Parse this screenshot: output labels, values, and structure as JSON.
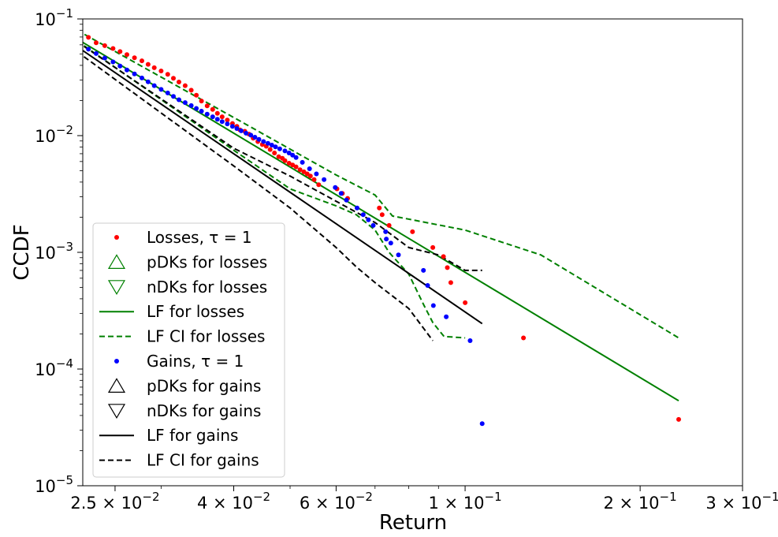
{
  "chart_data": {
    "type": "scatter",
    "xlabel": "Return",
    "ylabel": "CCDF",
    "xscale": "log",
    "yscale": "log",
    "xlim": [
      0.022,
      0.3
    ],
    "ylim": [
      1e-05,
      0.1
    ],
    "x_ticks": [
      {
        "value": 0.025,
        "mant": "2.5",
        "exp": "−2"
      },
      {
        "value": 0.04,
        "mant": "4",
        "exp": "−2"
      },
      {
        "value": 0.06,
        "mant": "6",
        "exp": "−2"
      },
      {
        "value": 0.1,
        "mant": "1",
        "exp": "−1"
      },
      {
        "value": 0.2,
        "mant": "2",
        "exp": "−1"
      },
      {
        "value": 0.3,
        "mant": "3",
        "exp": "−1"
      }
    ],
    "y_ticks": [
      {
        "value": 0.1,
        "base": "10",
        "exp": "−1"
      },
      {
        "value": 0.01,
        "base": "10",
        "exp": "−2"
      },
      {
        "value": 0.001,
        "base": "10",
        "exp": "−3"
      },
      {
        "value": 0.0001,
        "base": "10",
        "exp": "−4"
      },
      {
        "value": 1e-05,
        "base": "10",
        "exp": "−5"
      }
    ],
    "grid": false,
    "legend_position": "bottom-left",
    "legend": [
      {
        "label": "Losses, τ = 1",
        "marker": "dot",
        "color": "#ff0000"
      },
      {
        "label": "pDKs for losses",
        "marker": "triangle-up",
        "color": "#008000"
      },
      {
        "label": "nDKs for losses",
        "marker": "triangle-down",
        "color": "#008000"
      },
      {
        "label": "LF for losses",
        "marker": "solid-line",
        "color": "#008000"
      },
      {
        "label": "LF CI for losses",
        "marker": "dashed-line",
        "color": "#008000"
      },
      {
        "label": "Gains, τ = 1",
        "marker": "dot",
        "color": "#0000ff"
      },
      {
        "label": "pDKs for gains",
        "marker": "triangle-up",
        "color": "#000000"
      },
      {
        "label": "nDKs for gains",
        "marker": "triangle-down",
        "color": "#000000"
      },
      {
        "label": "LF for gains",
        "marker": "solid-line",
        "color": "#000000"
      },
      {
        "label": "LF CI for gains",
        "marker": "dashed-line",
        "color": "#000000"
      }
    ],
    "series": [
      {
        "name": "Losses, τ = 1",
        "kind": "scatter",
        "color": "#ff0000",
        "x": [
          0.0225,
          0.0232,
          0.024,
          0.0248,
          0.0255,
          0.0262,
          0.027,
          0.0278,
          0.0285,
          0.0292,
          0.03,
          0.0308,
          0.0315,
          0.0322,
          0.033,
          0.0338,
          0.0345,
          0.0352,
          0.036,
          0.0368,
          0.0375,
          0.0382,
          0.039,
          0.0398,
          0.0405,
          0.041,
          0.0418,
          0.0425,
          0.0432,
          0.044,
          0.0448,
          0.0455,
          0.0462,
          0.047,
          0.0478,
          0.0485,
          0.049,
          0.0498,
          0.0505,
          0.0512,
          0.052,
          0.0528,
          0.0535,
          0.0542,
          0.055,
          0.056,
          0.0602,
          0.0615,
          0.0628,
          0.0712,
          0.072,
          0.074,
          0.0812,
          0.088,
          0.0918,
          0.0932,
          0.0945,
          0.1,
          0.126,
          0.233
        ],
        "y": [
          0.0695,
          0.0625,
          0.059,
          0.0558,
          0.0525,
          0.0495,
          0.0465,
          0.0438,
          0.0408,
          0.0382,
          0.0358,
          0.0335,
          0.031,
          0.0288,
          0.0268,
          0.0245,
          0.0222,
          0.0198,
          0.018,
          0.0168,
          0.0155,
          0.0145,
          0.0136,
          0.0127,
          0.012,
          0.0112,
          0.0109,
          0.0103,
          0.0095,
          0.0089,
          0.0084,
          0.0081,
          0.0076,
          0.0071,
          0.0066,
          0.0064,
          0.0061,
          0.0058,
          0.0056,
          0.0054,
          0.0051,
          0.0049,
          0.0047,
          0.0045,
          0.0042,
          0.0038,
          0.0035,
          0.0032,
          0.0029,
          0.0024,
          0.0021,
          0.0017,
          0.0015,
          0.0011,
          0.00092,
          0.00074,
          0.00055,
          0.00037,
          0.000185,
          3.7e-05
        ]
      },
      {
        "name": "Gains, τ = 1",
        "kind": "scatter",
        "color": "#0000ff",
        "x": [
          0.0225,
          0.0232,
          0.024,
          0.0248,
          0.0255,
          0.0262,
          0.027,
          0.0278,
          0.0285,
          0.0292,
          0.03,
          0.0308,
          0.0315,
          0.0322,
          0.033,
          0.0338,
          0.0345,
          0.0352,
          0.036,
          0.0368,
          0.0375,
          0.0382,
          0.039,
          0.0398,
          0.0405,
          0.0412,
          0.042,
          0.0428,
          0.0435,
          0.0442,
          0.045,
          0.0458,
          0.0465,
          0.0472,
          0.048,
          0.049,
          0.0498,
          0.0505,
          0.0512,
          0.0525,
          0.054,
          0.0555,
          0.0572,
          0.0598,
          0.0612,
          0.0625,
          0.0652,
          0.0668,
          0.0682,
          0.0695,
          0.073,
          0.0732,
          0.0745,
          0.0768,
          0.0848,
          0.0862,
          0.0882,
          0.0928,
          0.102,
          0.107
        ],
        "y": [
          0.055,
          0.0505,
          0.0462,
          0.0428,
          0.0395,
          0.0365,
          0.0338,
          0.0312,
          0.0289,
          0.0268,
          0.0249,
          0.0232,
          0.0217,
          0.0203,
          0.0192,
          0.0181,
          0.0171,
          0.0162,
          0.0153,
          0.0145,
          0.0138,
          0.0132,
          0.0126,
          0.012,
          0.0115,
          0.011,
          0.0105,
          0.0101,
          0.0097,
          0.0093,
          0.0089,
          0.0086,
          0.0083,
          0.008,
          0.0077,
          0.0074,
          0.0071,
          0.0068,
          0.0065,
          0.0059,
          0.0052,
          0.0047,
          0.0042,
          0.0036,
          0.0032,
          0.0028,
          0.0024,
          0.0021,
          0.0019,
          0.0017,
          0.0015,
          0.0013,
          0.0012,
          0.00095,
          0.0007,
          0.00052,
          0.00035,
          0.00028,
          0.000175,
          3.4e-05
        ]
      },
      {
        "name": "LF for losses",
        "kind": "line",
        "style": "solid",
        "color": "#008000",
        "x": [
          0.0215,
          0.233
        ],
        "y": [
          0.0675,
          5.35e-05
        ]
      },
      {
        "name": "LF CI for losses (upper)",
        "kind": "line",
        "style": "dashed",
        "color": "#008000",
        "x": [
          0.0215,
          0.042,
          0.06,
          0.07,
          0.075,
          0.1,
          0.135,
          0.233
        ],
        "y": [
          0.08,
          0.0125,
          0.0046,
          0.0031,
          0.00205,
          0.00155,
          0.00095,
          0.000185
        ]
      },
      {
        "name": "LF CI for losses (lower)",
        "kind": "line",
        "style": "dashed",
        "color": "#008000",
        "x": [
          0.0215,
          0.04,
          0.05,
          0.06,
          0.065,
          0.07,
          0.074,
          0.08,
          0.085,
          0.088,
          0.092,
          0.1
        ],
        "y": [
          0.065,
          0.0075,
          0.0035,
          0.0025,
          0.0021,
          0.00155,
          0.001,
          0.00065,
          0.00035,
          0.00025,
          0.00019,
          0.000185
        ]
      },
      {
        "name": "LF for gains",
        "kind": "line",
        "style": "solid",
        "color": "#000000",
        "x": [
          0.0215,
          0.107
        ],
        "y": [
          0.058,
          0.000245
        ]
      },
      {
        "name": "LF CI for gains (upper)",
        "kind": "line",
        "style": "dashed",
        "color": "#000000",
        "x": [
          0.0215,
          0.04,
          0.05,
          0.07,
          0.08,
          0.09,
          0.1,
          0.107
        ],
        "y": [
          0.064,
          0.0078,
          0.0045,
          0.0018,
          0.0011,
          0.00095,
          0.0007,
          0.0007
        ]
      },
      {
        "name": "LF CI for gains (lower)",
        "kind": "line",
        "style": "dashed",
        "color": "#000000",
        "x": [
          0.0215,
          0.04,
          0.05,
          0.06,
          0.065,
          0.07,
          0.08,
          0.088
        ],
        "y": [
          0.0525,
          0.0055,
          0.0024,
          0.0011,
          0.00075,
          0.00055,
          0.00033,
          0.000175
        ]
      }
    ]
  }
}
